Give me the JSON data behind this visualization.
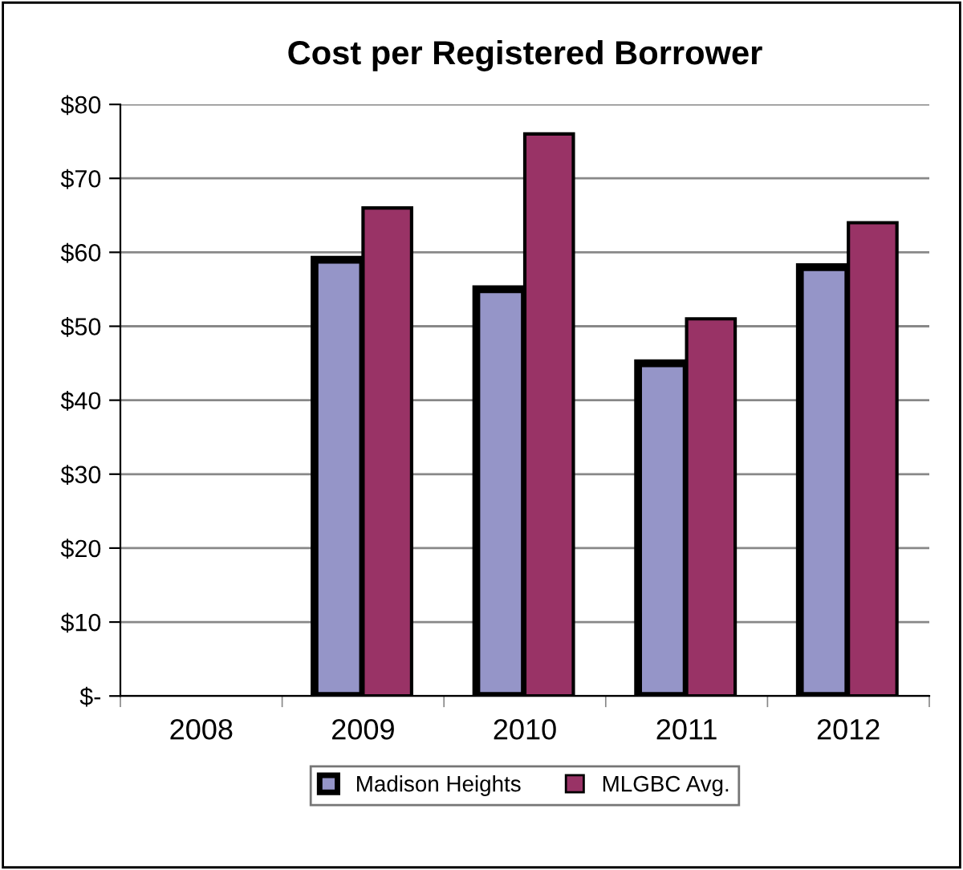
{
  "chart_data": {
    "type": "bar",
    "title": "Cost per Registered Borrower",
    "categories": [
      "2008",
      "2009",
      "2010",
      "2011",
      "2012"
    ],
    "series": [
      {
        "name": "Madison Heights",
        "color": "#9595c8",
        "values": [
          null,
          59,
          55,
          45,
          58
        ]
      },
      {
        "name": "MLGBC Avg.",
        "color": "#993366",
        "values": [
          null,
          66,
          76,
          51,
          64
        ]
      }
    ],
    "ylim": [
      0,
      80
    ],
    "yticks": [
      {
        "value": 0,
        "label": "$-"
      },
      {
        "value": 10,
        "label": "$10"
      },
      {
        "value": 20,
        "label": "$20"
      },
      {
        "value": 30,
        "label": "$30"
      },
      {
        "value": 40,
        "label": "$40"
      },
      {
        "value": 50,
        "label": "$50"
      },
      {
        "value": 60,
        "label": "$60"
      },
      {
        "value": 70,
        "label": "$70"
      },
      {
        "value": 80,
        "label": "$80"
      }
    ],
    "grid": "y",
    "legend": "bottom"
  }
}
